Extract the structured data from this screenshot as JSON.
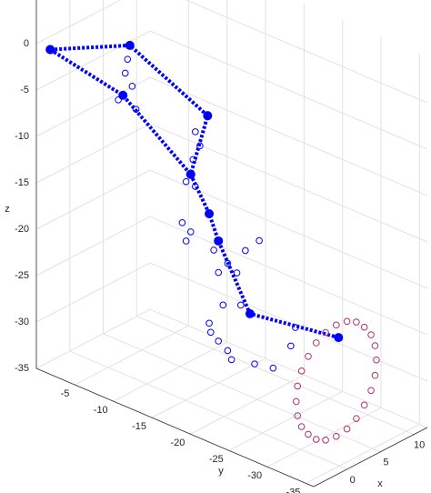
{
  "chart_data": {
    "type": "scatter3d",
    "xlabel": "x",
    "ylabel": "y",
    "zlabel": "z",
    "xlim": [
      -5,
      12
    ],
    "ylim": [
      -36,
      0
    ],
    "zlim": [
      -35,
      5
    ],
    "xticks": [
      0,
      5,
      10
    ],
    "yticks": [
      -35,
      -30,
      -25,
      -20,
      -15,
      -10,
      -5
    ],
    "zticks": [
      -35,
      -30,
      -25,
      -20,
      -15,
      -10,
      -5,
      0
    ],
    "grid": true,
    "series": [
      {
        "style": "line",
        "color": "#0000ff",
        "x": [
          -5,
          0,
          0,
          0,
          0,
          0,
          0,
          0
        ],
        "y": [
          -1.8,
          -7.8,
          -17.9,
          -15.7,
          -18.1,
          -19.3,
          -23.4,
          -34.9
        ],
        "z": [
          0,
          0.7,
          -3.3,
          -10.4,
          -13.8,
          -16.3,
          -22.7,
          -21.2
        ]
      },
      {
        "style": "line",
        "color": "#0000ff",
        "x": [
          -5,
          0,
          0
        ],
        "y": [
          -1.8,
          -6.9,
          -15.7
        ],
        "z": [
          0,
          -5,
          -10.4
        ]
      },
      {
        "style": "marker",
        "color": "#0000ff",
        "x": [
          0,
          0,
          0,
          0,
          0,
          0,
          0,
          0,
          0,
          0,
          0,
          0,
          0,
          0,
          0,
          0,
          0,
          0,
          0,
          0,
          0,
          0,
          0,
          0,
          0,
          0,
          0,
          0,
          0,
          0
        ],
        "y": [
          -7.5,
          -7.2,
          -8.1,
          -6.3,
          -8.6,
          -16.3,
          -16.9,
          -16.0,
          -15.1,
          -16.3,
          -14.6,
          -15.1,
          -15.7,
          -18.7,
          -20.5,
          -21.7,
          -19.3,
          -22.8,
          -24.6,
          -19.9,
          -22.2,
          -18.1,
          -19.3,
          -21.0,
          -24.0,
          -26.4,
          -28.7,
          -29.3,
          -18.3,
          -20.5
        ],
        "z": [
          -0.9,
          -2.5,
          -3.6,
          -5.7,
          -5.9,
          -5.6,
          -6.9,
          -8.7,
          -11.4,
          -11.5,
          -16.0,
          -17.8,
          -16.6,
          -17.5,
          -18.3,
          -18.9,
          -19.7,
          -16.1,
          -14.4,
          -23.0,
          -22.2,
          -25.6,
          -27.1,
          -28.5,
          -27.9,
          -27.5,
          -24.3,
          -22.1,
          -26.5,
          -27.7
        ]
      },
      {
        "style": "marker",
        "color": "#b03070",
        "x": [
          9,
          8.8,
          8.2,
          7.2,
          6,
          4.6,
          3,
          1.4,
          0,
          -1.2,
          -2.2,
          -2.8,
          -3,
          -2.8,
          -2.2,
          -1.2,
          0,
          1.4,
          3,
          4.6,
          6,
          7.2,
          8.2,
          8.8
        ],
        "y": [
          -32,
          -32,
          -32,
          -32,
          -32,
          -32,
          -32,
          -32,
          -32,
          -32,
          -32,
          -32,
          -32,
          -32,
          -32,
          -32,
          -32,
          -32,
          -32,
          -32,
          -32,
          -32,
          -32,
          -32
        ],
        "z": [
          -28,
          -26.4,
          -25,
          -23.8,
          -22.8,
          -22.2,
          -22,
          -22.2,
          -22.8,
          -23.8,
          -25,
          -26.4,
          -28,
          -29.6,
          -31,
          -32.2,
          -33.2,
          -33.8,
          -34,
          -33.8,
          -33.2,
          -32.2,
          -31,
          -29.6
        ]
      }
    ]
  }
}
